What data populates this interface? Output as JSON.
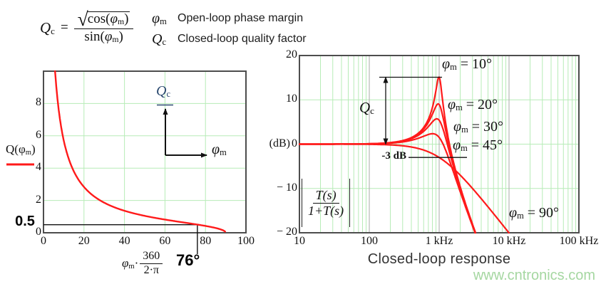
{
  "formula": {
    "lhs_base": "Q",
    "lhs_sub": "c",
    "equals": "=",
    "radical": "√",
    "num_fn": "cos(",
    "num_sym": "φ",
    "num_sub": "m",
    "num_close": ")",
    "den_fn": "sin(",
    "den_sym": "φ",
    "den_sub": "m",
    "den_close": ")"
  },
  "legend": [
    {
      "sym": "φ",
      "sub": "m",
      "desc": "Open-loop phase margin"
    },
    {
      "sym": "Q",
      "sub": "c",
      "desc": "Closed-loop quality factor"
    }
  ],
  "watermark": "www.cntronics.com",
  "chart_data": [
    {
      "type": "line",
      "name": "quality-factor-vs-phase-margin",
      "ylabel_pre": "Q(φ",
      "ylabel_sub": "m",
      "ylabel_post": ")",
      "xlabel_sym": "φ",
      "xlabel_sub": "m",
      "xlabel_dot": "·",
      "xlabel_num": "360",
      "xlabel_den": "2·π",
      "xlim": [
        0,
        100
      ],
      "ylim": [
        0,
        10
      ],
      "x_ticks": [
        {
          "label": "0",
          "v": 0
        },
        {
          "label": "20",
          "v": 20
        },
        {
          "label": "40",
          "v": 40
        },
        {
          "label": "60",
          "v": 60
        },
        {
          "label": "80",
          "v": 80
        },
        {
          "label": "100",
          "v": 100
        }
      ],
      "y_ticks": [
        {
          "label": "0",
          "v": 0
        },
        {
          "label": "2",
          "v": 2
        },
        {
          "label": "4",
          "v": 4
        },
        {
          "label": "6",
          "v": 6
        },
        {
          "label": "8",
          "v": 8
        }
      ],
      "grid_x": [
        20,
        40,
        60,
        80
      ],
      "grid_y": [
        2,
        4,
        6,
        8
      ],
      "model": "Q(phi) = sqrt(cos(phi))/sin(phi), phi in degrees",
      "samples_deg_Q": [
        [
          5.7,
          10
        ],
        [
          10,
          5.67
        ],
        [
          20,
          2.8
        ],
        [
          30,
          1.86
        ],
        [
          40,
          1.36
        ],
        [
          50,
          1.05
        ],
        [
          60,
          0.82
        ],
        [
          70,
          0.63
        ],
        [
          76,
          0.5
        ],
        [
          80,
          0.42
        ],
        [
          90,
          0
        ]
      ],
      "annotation": {
        "q_label": "0.5",
        "q_value": 0.5,
        "phi_label": "76°",
        "phi_value": 76
      },
      "inset": {
        "y_sym": "Q",
        "y_sub": "c",
        "x_sym": "φ",
        "x_sub": "m"
      },
      "grid_color": "#b7ecb7",
      "curve_color": "#ff1a1a",
      "border_color": "#4d4d4d"
    },
    {
      "type": "line",
      "name": "closed-loop-response",
      "title": "Closed-loop response",
      "ylabel": "(dB)",
      "xlim_hz": [
        10,
        100000
      ],
      "ylim_db": [
        -20,
        20
      ],
      "fc_hz": 1000,
      "x_ticks": [
        {
          "label": "10",
          "hz": 10
        },
        {
          "label": "100",
          "hz": 100
        },
        {
          "label": "1 kHz",
          "hz": 1000
        },
        {
          "label": "10 kHz",
          "hz": 10000
        },
        {
          "label": "100 kHz",
          "hz": 100000
        }
      ],
      "y_ticks": [
        {
          "label": "20",
          "db": 20
        },
        {
          "label": "10",
          "db": 10
        },
        {
          "label": "0",
          "db": 0
        },
        {
          "label": "− 10",
          "db": -10
        },
        {
          "label": "− 20",
          "db": -20
        }
      ],
      "grid_db": [
        10,
        0,
        -10
      ],
      "model": "|T(s)/(1+T(s))| second-order closed loop, peak ≈ 20·log10(Qc) dB at fc",
      "series": [
        {
          "sym": "φ",
          "sub": "m",
          "eq_val": " = 10°",
          "phi_deg": 10,
          "Qc": 5.7,
          "peak_db": 15.1,
          "order": 2
        },
        {
          "sym": "φ",
          "sub": "m",
          "eq_val": " = 20°",
          "phi_deg": 20,
          "Qc": 2.8,
          "peak_db": 8.9,
          "order": 2
        },
        {
          "sym": "φ",
          "sub": "m",
          "eq_val": " = 30°",
          "phi_deg": 30,
          "Qc": 1.86,
          "peak_db": 5.4,
          "order": 2
        },
        {
          "sym": "φ",
          "sub": "m",
          "eq_val": " = 45°",
          "phi_deg": 45,
          "Qc": 1.19,
          "peak_db": 1.5,
          "order": 2
        },
        {
          "sym": "φ",
          "sub": "m",
          "eq_val": " = 90°",
          "phi_deg": 90,
          "order": 1,
          "rolloff_db_per_dec": -20
        }
      ],
      "annotations": {
        "qc_sym": "Q",
        "qc_sub": "c",
        "minus3db": "-3 dB",
        "minus3db_value": -3,
        "transfer_num": "T(s)",
        "transfer_den": "1+T(s)"
      },
      "grid_minor_color": "#b7ecb7",
      "grid_major_color": "#aaaaaa",
      "curve_color": "#ff1a1a",
      "border_color": "#4d4d4d"
    }
  ]
}
